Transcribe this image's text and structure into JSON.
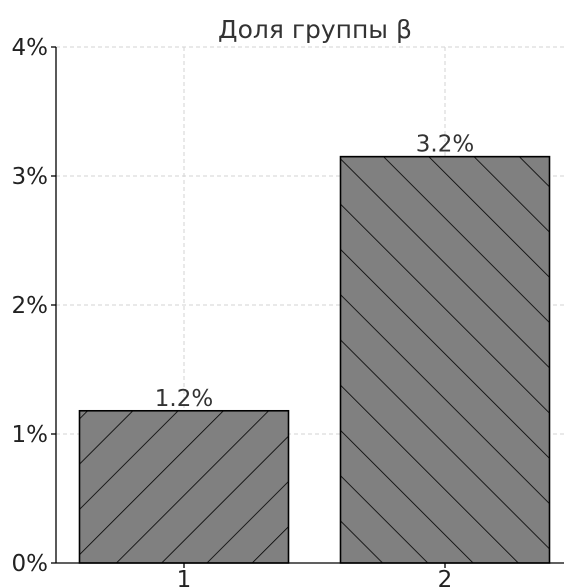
{
  "chart_data": {
    "type": "bar",
    "title": "Доля группы β",
    "xlabel": "",
    "ylabel": "",
    "categories": [
      "1",
      "2"
    ],
    "values": [
      1.18,
      3.15
    ],
    "data_labels": [
      "1.2%",
      "3.2%"
    ],
    "ylim": [
      0,
      4
    ],
    "yticks": [
      0,
      1,
      2,
      3,
      4
    ],
    "ytick_labels": [
      "0%",
      "1%",
      "2%",
      "3%",
      "4%"
    ],
    "grid": true,
    "bar_color": "#808080",
    "edge_color": "#000000",
    "hatch": "diagonal"
  }
}
